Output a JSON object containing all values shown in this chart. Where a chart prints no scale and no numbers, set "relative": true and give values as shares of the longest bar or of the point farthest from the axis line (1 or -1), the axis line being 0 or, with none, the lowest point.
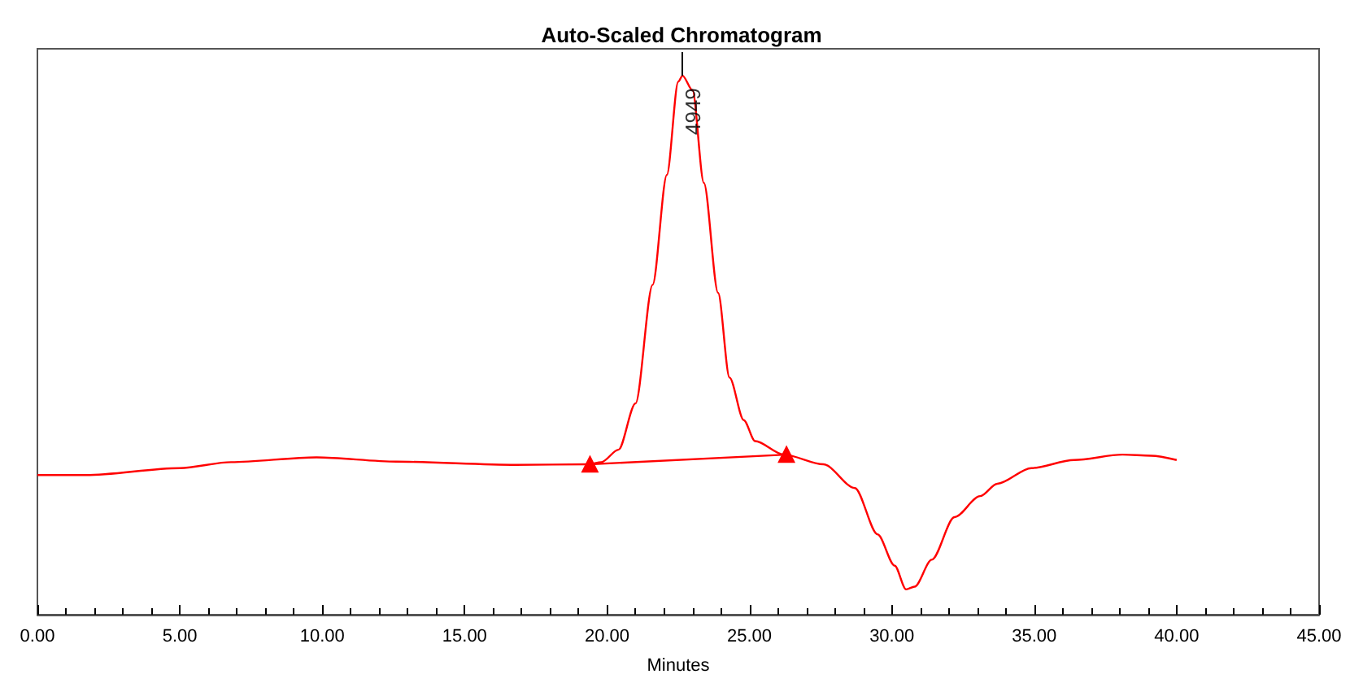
{
  "chart_data": {
    "type": "line",
    "title": "Auto-Scaled Chromatogram",
    "xlabel": "Minutes",
    "relative": true,
    "xlim": [
      0,
      45
    ],
    "xticks": [
      {
        "value": 0,
        "label": "0.00"
      },
      {
        "value": 5,
        "label": "5.00"
      },
      {
        "value": 10,
        "label": "10.00"
      },
      {
        "value": 15,
        "label": "15.00"
      },
      {
        "value": 20,
        "label": "20.00"
      },
      {
        "value": 25,
        "label": "25.00"
      },
      {
        "value": 30,
        "label": "30.00"
      },
      {
        "value": 35,
        "label": "35.00"
      },
      {
        "value": 40,
        "label": "40.00"
      },
      {
        "value": 45,
        "label": "45.00"
      }
    ],
    "grid": false,
    "series": [
      {
        "color": "#ff0000",
        "marker": "none",
        "x": [
          0,
          1.7,
          5.0,
          6.8,
          9.8,
          12.6,
          16.8,
          19.35,
          19.8,
          20.4,
          21.0,
          21.6,
          22.1,
          22.5,
          22.65,
          23.0,
          23.4,
          23.9,
          24.3,
          24.8,
          25.2,
          26.2,
          27.6,
          28.7,
          29.5,
          30.1,
          30.5,
          30.8,
          31.4,
          32.2,
          33.1,
          33.7,
          34.9,
          36.4,
          38.1,
          39.1,
          40.0
        ],
        "values": [
          0.259,
          0.259,
          0.272,
          0.283,
          0.292,
          0.284,
          0.278,
          0.279,
          0.283,
          0.306,
          0.392,
          0.612,
          0.816,
          0.989,
          1,
          0.973,
          0.801,
          0.597,
          0.44,
          0.361,
          0.322,
          0.297,
          0.279,
          0.235,
          0.149,
          0.091,
          0.047,
          0.052,
          0.102,
          0.181,
          0.22,
          0.243,
          0.272,
          0.287,
          0.297,
          0.295,
          0.287
        ]
      },
      {
        "color": "#ff0000",
        "marker": "triangle",
        "x": [
          19.4,
          26.3
        ],
        "values": [
          0.279,
          0.297
        ]
      }
    ],
    "annotations": [
      {
        "text": "4949",
        "x": 22.65,
        "y": 1
      }
    ]
  }
}
